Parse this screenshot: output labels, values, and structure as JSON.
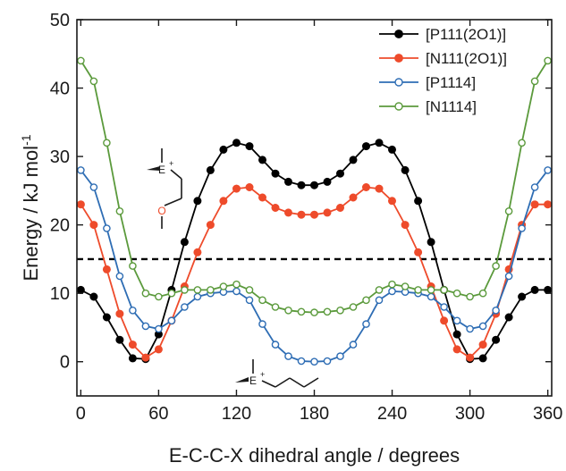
{
  "chart_data": {
    "type": "line",
    "xlabel": "E-C-C-X dihedral angle / degrees",
    "ylabel": "Energy / kJ mol",
    "ylabel_sup": "-1",
    "xlim": [
      -3,
      363
    ],
    "ylim": [
      -5,
      50
    ],
    "xticks": [
      0,
      60,
      120,
      180,
      240,
      300,
      360
    ],
    "yticks": [
      0,
      10,
      20,
      30,
      40,
      50
    ],
    "legend_position": "top-right",
    "reference_line": {
      "y": 15,
      "style": "dashed",
      "color": "#000000"
    },
    "inset_annotations": [
      "E",
      "+",
      "O",
      "E",
      "+"
    ],
    "series": [
      {
        "name": "[P111(2O1)]",
        "color": "#000000",
        "marker": "filled-circle",
        "x": [
          0,
          10,
          20,
          30,
          40,
          50,
          60,
          70,
          80,
          90,
          100,
          110,
          120,
          130,
          140,
          150,
          160,
          170,
          180,
          190,
          200,
          210,
          220,
          230,
          240,
          250,
          260,
          270,
          280,
          290,
          300,
          310,
          320,
          330,
          340,
          350,
          360
        ],
        "y": [
          10.5,
          9.5,
          6.5,
          3.2,
          0.5,
          0.4,
          4.0,
          10.5,
          17.5,
          23.5,
          28.0,
          31.0,
          32.0,
          31.5,
          29.5,
          27.5,
          26.3,
          25.8,
          25.8,
          26.3,
          27.5,
          29.5,
          31.5,
          32.0,
          31.0,
          28.0,
          23.5,
          17.5,
          10.5,
          4.0,
          0.4,
          0.5,
          3.2,
          6.5,
          9.5,
          10.5,
          10.5
        ]
      },
      {
        "name": "[N111(2O1)]",
        "color": "#ee4b2b",
        "marker": "filled-circle",
        "x": [
          0,
          10,
          20,
          30,
          40,
          50,
          60,
          70,
          80,
          90,
          100,
          110,
          120,
          130,
          140,
          150,
          160,
          170,
          180,
          190,
          200,
          210,
          220,
          230,
          240,
          250,
          260,
          270,
          280,
          290,
          300,
          310,
          320,
          330,
          340,
          350,
          360
        ],
        "y": [
          23.0,
          20.0,
          13.5,
          7.0,
          2.5,
          0.6,
          1.8,
          6.0,
          11.0,
          16.0,
          20.0,
          23.5,
          25.3,
          25.5,
          24.0,
          22.5,
          21.8,
          21.5,
          21.5,
          21.8,
          22.5,
          24.0,
          25.5,
          25.3,
          23.5,
          20.0,
          16.0,
          11.0,
          6.0,
          1.8,
          0.6,
          2.5,
          7.0,
          13.5,
          20.0,
          23.0,
          23.0
        ]
      },
      {
        "name": "[P1114]",
        "color": "#2e6db4",
        "marker": "open-circle",
        "x": [
          0,
          10,
          20,
          30,
          40,
          50,
          60,
          70,
          80,
          90,
          100,
          110,
          120,
          130,
          140,
          150,
          160,
          170,
          180,
          190,
          200,
          210,
          220,
          230,
          240,
          250,
          260,
          270,
          280,
          290,
          300,
          310,
          320,
          330,
          340,
          350,
          360
        ],
        "y": [
          28.0,
          25.5,
          19.5,
          12.5,
          7.5,
          5.2,
          4.8,
          6.0,
          8.0,
          9.5,
          10.0,
          10.2,
          10.3,
          9.0,
          5.5,
          2.5,
          0.8,
          0.1,
          0.0,
          0.1,
          0.8,
          2.5,
          5.5,
          9.0,
          10.3,
          10.2,
          10.0,
          9.5,
          8.0,
          6.0,
          4.8,
          5.2,
          7.5,
          12.5,
          19.5,
          25.5,
          28.0
        ]
      },
      {
        "name": "[N1114]",
        "color": "#5b9a3c",
        "marker": "open-circle",
        "x": [
          0,
          10,
          20,
          30,
          40,
          50,
          60,
          70,
          80,
          90,
          100,
          110,
          120,
          130,
          140,
          150,
          160,
          170,
          180,
          190,
          200,
          210,
          220,
          230,
          240,
          250,
          260,
          270,
          280,
          290,
          300,
          310,
          320,
          330,
          340,
          350,
          360
        ],
        "y": [
          44.0,
          41.0,
          32.0,
          22.0,
          14.0,
          10.0,
          9.5,
          10.0,
          10.5,
          10.5,
          10.5,
          11.0,
          11.3,
          10.5,
          9.0,
          8.0,
          7.5,
          7.3,
          7.2,
          7.3,
          7.5,
          8.0,
          9.0,
          10.5,
          11.3,
          11.0,
          10.5,
          10.5,
          10.5,
          10.0,
          9.5,
          10.0,
          14.0,
          22.0,
          32.0,
          41.0,
          44.0
        ]
      }
    ]
  }
}
